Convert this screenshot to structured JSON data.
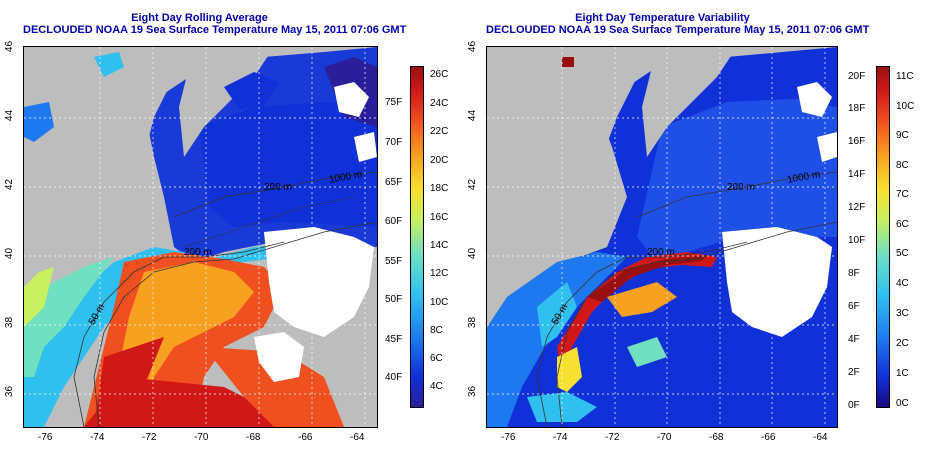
{
  "left": {
    "title_line1": "Eight Day Rolling Average",
    "title_line2": "DECLOUDED NOAA 19 Sea Surface Temperature May 15, 2011 07:06 GMT",
    "x_ticks": [
      "-76",
      "-74",
      "-72",
      "-70",
      "-68",
      "-66",
      "-64"
    ],
    "y_ticks": [
      "36",
      "38",
      "40",
      "42",
      "44",
      "46"
    ],
    "contours": [
      "50 m",
      "200 m",
      "200 m",
      "1000 m"
    ],
    "colorbar_celsius": [
      "26C",
      "24C",
      "22C",
      "20C",
      "18C",
      "16C",
      "14C",
      "12C",
      "10C",
      "8C",
      "6C",
      "4C"
    ],
    "colorbar_fahrenheit": [
      "75F",
      "70F",
      "65F",
      "60F",
      "55F",
      "50F",
      "45F",
      "40F"
    ]
  },
  "right": {
    "title_line1": "Eight Day Temperature Variability",
    "title_line2": "DECLOUDED NOAA 19 Sea Surface Temperature May 15, 2011 07:06 GMT",
    "x_ticks": [
      "-76",
      "-74",
      "-72",
      "-70",
      "-68",
      "-66",
      "-64"
    ],
    "y_ticks": [
      "36",
      "38",
      "40",
      "42",
      "44",
      "46"
    ],
    "contours": [
      "50 m",
      "200 m",
      "200 m",
      "1000 m"
    ],
    "colorbar_celsius": [
      "11C",
      "10C",
      "9C",
      "8C",
      "7C",
      "6C",
      "5C",
      "4C",
      "3C",
      "2C",
      "1C",
      "0C"
    ],
    "colorbar_fahrenheit": [
      "20F",
      "18F",
      "16F",
      "14F",
      "12F",
      "10F",
      "8F",
      "6F",
      "4F",
      "2F",
      "0F"
    ]
  },
  "colors": {
    "land": "#bdbdbd",
    "cloud": "#ffffff",
    "title": "#0000aa",
    "sst_scale": [
      "#2a1e9a",
      "#1030d8",
      "#1e78f0",
      "#30c0f0",
      "#70e0c0",
      "#c8f060",
      "#f8e030",
      "#f8a020",
      "#f05020",
      "#d01818",
      "#9a1010"
    ]
  }
}
